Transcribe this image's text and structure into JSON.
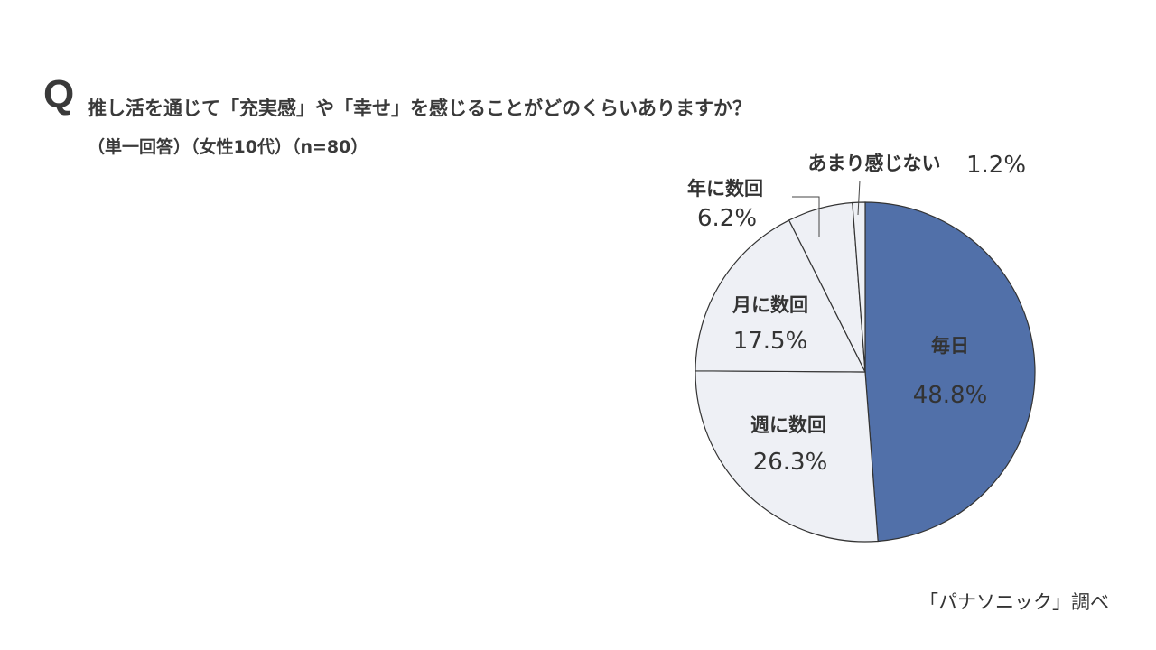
{
  "header": {
    "q_mark": "Q",
    "question": "推し活を通じて「充実感」や「幸せ」を感じることがどのくらいありますか？",
    "note": "（単一回答）（女性10代）（n=80）"
  },
  "footer": {
    "source": "「パナソニック」調べ"
  },
  "chart_data": {
    "type": "pie",
    "title": "推し活を通じて「充実感」や「幸せ」を感じることがどのくらいありますか？",
    "subtitle": "（単一回答）（女性10代）（n=80）",
    "categories": [
      "毎日",
      "週に数回",
      "月に数回",
      "年に数回",
      "あまり感じない"
    ],
    "values": [
      48.8,
      26.3,
      17.5,
      6.2,
      1.2
    ],
    "value_labels": [
      "48.8%",
      "26.3%",
      "17.5%",
      "6.2%",
      "1.2%"
    ],
    "colors": [
      "#5170a9",
      "#eef0f5",
      "#eef0f5",
      "#eef0f5",
      "#eef0f5"
    ],
    "start": "12 o'clock, clockwise",
    "legend": "none"
  }
}
